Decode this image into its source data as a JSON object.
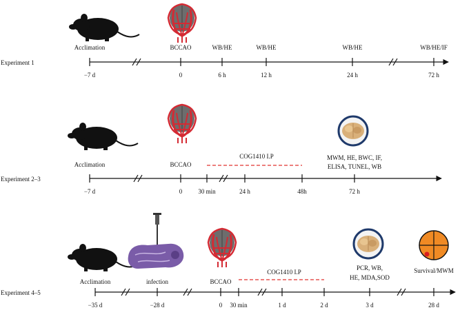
{
  "experiments": [
    {
      "label": "Experiment 1",
      "ticks": [
        "−7 d",
        "0",
        "6 h",
        "12 h",
        "24 h",
        "72 h"
      ],
      "above": [
        "Acclimation",
        "BCCAO",
        "WB/HE",
        "WB/HE",
        "WB/HE",
        "WB/HE/IF"
      ]
    },
    {
      "label": "Experiment 2–3",
      "ticks": [
        "−7 d",
        "0",
        "30 min",
        "24 h",
        "48h",
        "72 h"
      ],
      "above": [
        "Acclimation",
        "BCCAO"
      ],
      "treatment": "COG1410 I.P",
      "outcome_lines": [
        "MWM, HE, BWC, IF,",
        "ELISA, TUNEL, WB"
      ]
    },
    {
      "label": "Experiment 4–5",
      "ticks": [
        "−35 d",
        "−28 d",
        "0",
        "30 min",
        "1 d",
        "2 d",
        "3 d",
        "28 d"
      ],
      "above": [
        "Acclimation",
        "infection",
        "BCCAO"
      ],
      "treatment": "COG1410 I.P",
      "outcome_lines": [
        "PCR, WB,",
        "HE, MDA,SOD"
      ],
      "survival": "Survival/MWM"
    }
  ],
  "icons": [
    "mouse-icon",
    "brain-vessels-icon",
    "brain-icon",
    "brain-section-syringe-icon",
    "survival-target-icon"
  ],
  "colors": {
    "vessel_red": "#d42a33",
    "dashed_red": "#e0322e",
    "brain_tan": "#d9b07a",
    "survival_orange": "#f08a24"
  }
}
